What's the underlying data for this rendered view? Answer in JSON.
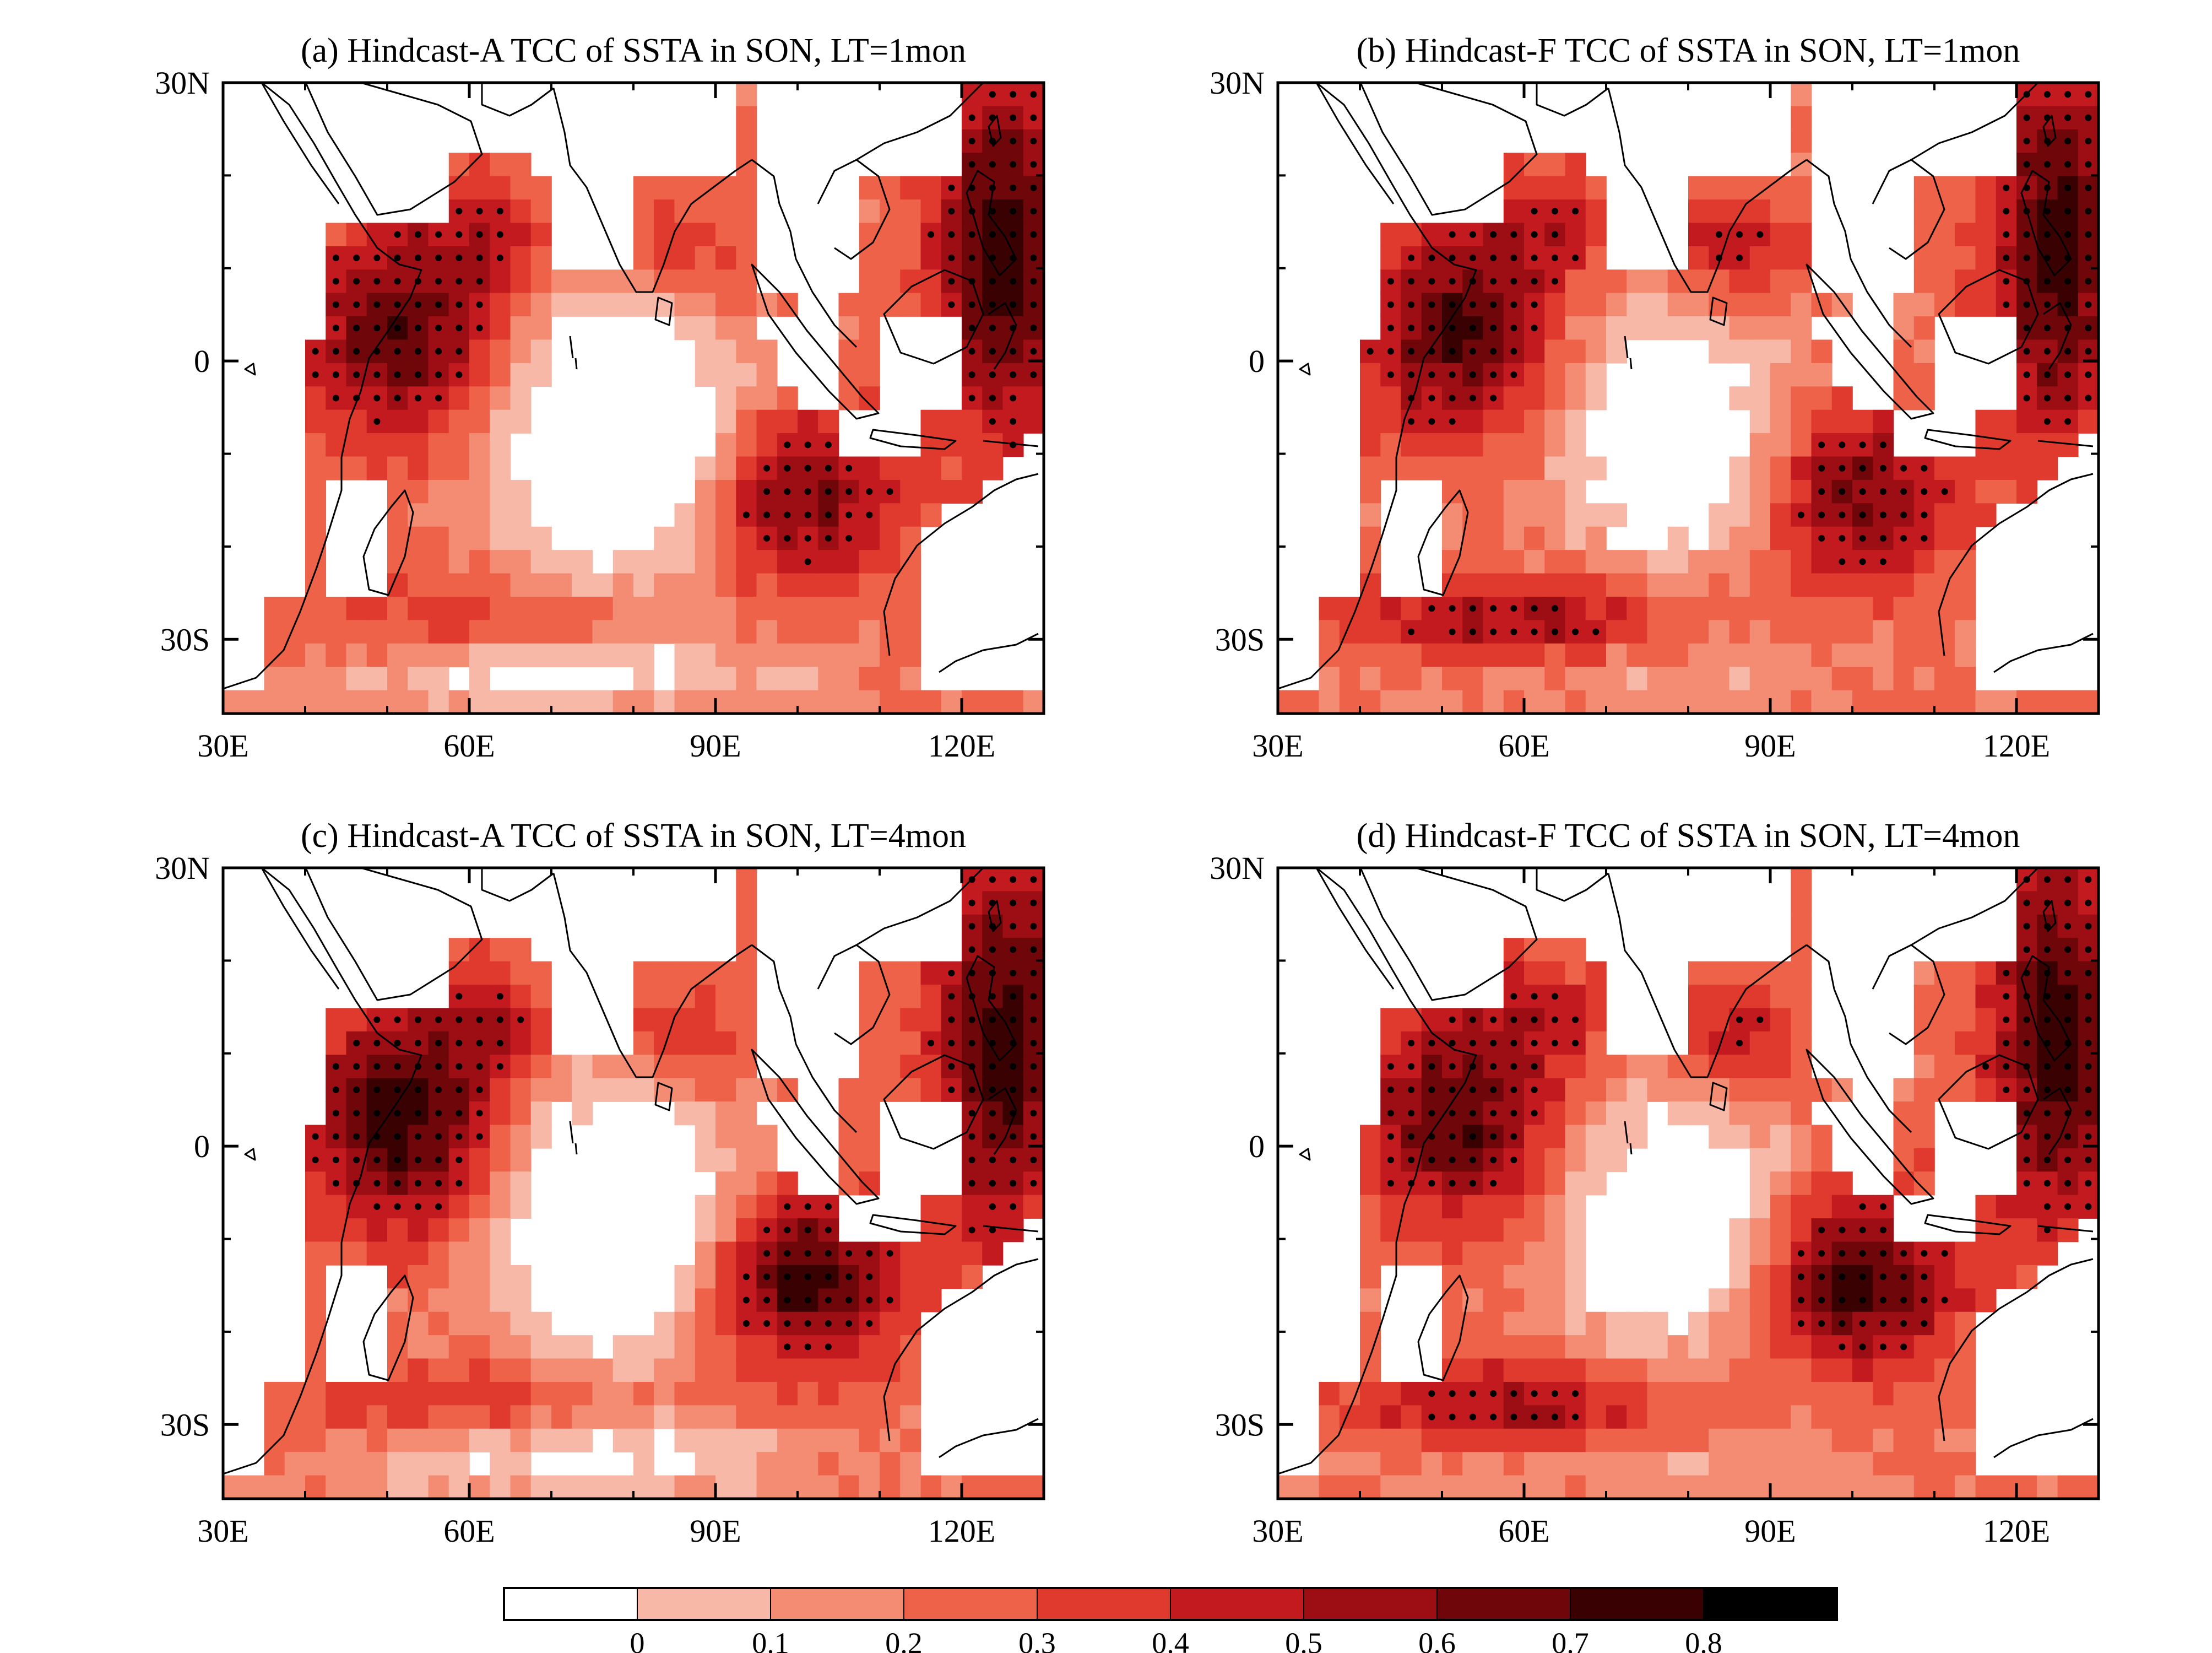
{
  "panels": [
    {
      "title": "(a) Hindcast-A TCC of SSTA in SON, LT=1mon",
      "variant": 0
    },
    {
      "title": "(b) Hindcast-F TCC of SSTA in SON, LT=1mon",
      "variant": 1
    },
    {
      "title": "(c) Hindcast-A TCC of SSTA in SON, LT=4mon",
      "variant": 2
    },
    {
      "title": "(d) Hindcast-F TCC of SSTA in SON, LT=4mon",
      "variant": 3
    }
  ],
  "map_extent": {
    "lon": [
      30,
      130
    ],
    "lat": [
      -38,
      30
    ]
  },
  "x_ticks": [
    {
      "lon": 30,
      "label": "30E"
    },
    {
      "lon": 60,
      "label": "60E"
    },
    {
      "lon": 90,
      "label": "90E"
    },
    {
      "lon": 120,
      "label": "120E"
    }
  ],
  "y_ticks": [
    {
      "lat": 30,
      "label": "30N"
    },
    {
      "lat": 0,
      "label": "0"
    },
    {
      "lat": -30,
      "label": "30S"
    }
  ],
  "colorbar": {
    "labels": [
      "0",
      "0.1",
      "0.2",
      "0.3",
      "0.4",
      "0.5",
      "0.6",
      "0.7",
      "0.8"
    ],
    "colors": [
      "#ffffff",
      "#f8b8a8",
      "#f48c74",
      "#ee6249",
      "#e03a2e",
      "#c31a1f",
      "#9c0e14",
      "#6f0609",
      "#3a0103",
      "#000000"
    ]
  },
  "stipple_meaning_color": "#000000"
}
